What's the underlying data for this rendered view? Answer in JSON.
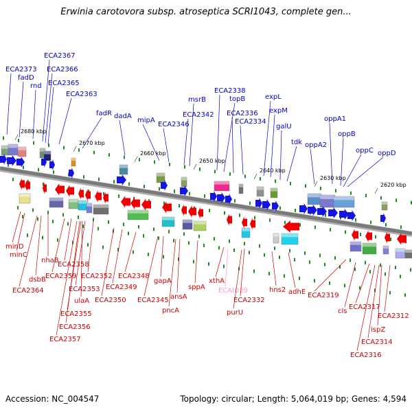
{
  "title": "Erwinia carotovora subsp. atroseptica SCRI1043, complete gen...",
  "footer": {
    "accession": "Accession: NC_004547",
    "summary": "Topology: circular; Length: 5,064,019 bp; Genes: 4,594"
  },
  "colors": {
    "forward_label": "#0000cc",
    "reverse_label": "#cc0000",
    "rna_label": "#ff99cc",
    "forward_arrow": "#1515e0",
    "reverse_arrow": "#ee0000",
    "backbone": "#7a7a7a",
    "tick_mark": "#228822"
  },
  "ticks": [
    "2680 kbp",
    "2670 kbp",
    "2660 kbp",
    "2650 kbp",
    "2640 kbp",
    "2630 kbp",
    "2620 kbp"
  ],
  "forward_genes": [
    "ECA2373",
    "fadD",
    "rnd",
    "ECA2367",
    "ECA2366",
    "ECA2365",
    "ECA2363",
    "fadR",
    "dadA",
    "mipA",
    "ECA2346",
    "ECA2342",
    "msrB",
    "ECA2338",
    "topB",
    "ECA2336",
    "ECA2334",
    "expL",
    "expM",
    "galU",
    "tdk",
    "oppA2",
    "oppA1",
    "oppB",
    "oppC",
    "oppD"
  ],
  "reverse_genes": [
    "minD",
    "minC",
    "dsbB",
    "ECA2364",
    "nhaB",
    "ECA2358",
    "ECA2359",
    "ECA2352",
    "ECA2353",
    "ulaA",
    "ECA2355",
    "ECA2356",
    "ECA2357",
    "ECA2349",
    "ECA2348",
    "ECA2350",
    "gapA",
    "ECA2345",
    "pncA",
    "ansA",
    "sppA",
    "xthA",
    "ECAt039",
    "ECA2332",
    "purU",
    "hns2",
    "adhE",
    "ECA2319",
    "cls",
    "ECA2317",
    "ECA2312",
    "ispZ",
    "ECA2314",
    "ECA2316"
  ]
}
